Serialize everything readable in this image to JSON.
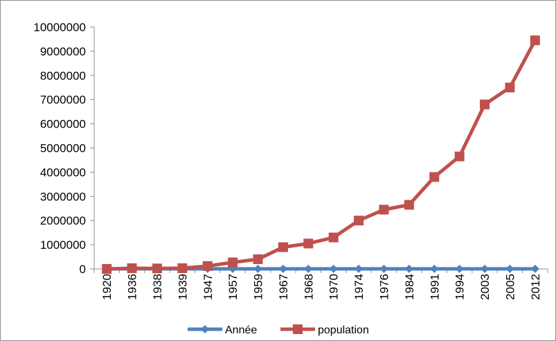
{
  "chart_data": {
    "type": "line",
    "title": "",
    "xlabel": "",
    "ylabel": "",
    "categories": [
      "1920",
      "1936",
      "1938",
      "1939",
      "1947",
      "1957",
      "1959",
      "1967",
      "1968",
      "1970",
      "1974",
      "1976",
      "1984",
      "1991",
      "1994",
      "2003",
      "2005",
      "2012"
    ],
    "ylim": [
      0,
      10000000
    ],
    "yticks": [
      "0",
      "1000000",
      "2000000",
      "3000000",
      "4000000",
      "5000000",
      "6000000",
      "7000000",
      "8000000",
      "9000000",
      "10000000"
    ],
    "grid": false,
    "legend_position": "bottom",
    "series": [
      {
        "name": "Année",
        "color": "#4f81bd",
        "marker": "diamond",
        "values": [
          1920,
          1936,
          1938,
          1939,
          1947,
          1957,
          1959,
          1967,
          1968,
          1970,
          1974,
          1976,
          1984,
          1991,
          1994,
          2003,
          2005,
          2012
        ]
      },
      {
        "name": "population",
        "color": "#c0504d",
        "marker": "square",
        "values": [
          0,
          30000,
          20000,
          30000,
          120000,
          270000,
          400000,
          900000,
          1050000,
          1300000,
          2000000,
          2450000,
          2650000,
          3800000,
          4650000,
          6800000,
          7500000,
          9450000
        ]
      }
    ]
  }
}
